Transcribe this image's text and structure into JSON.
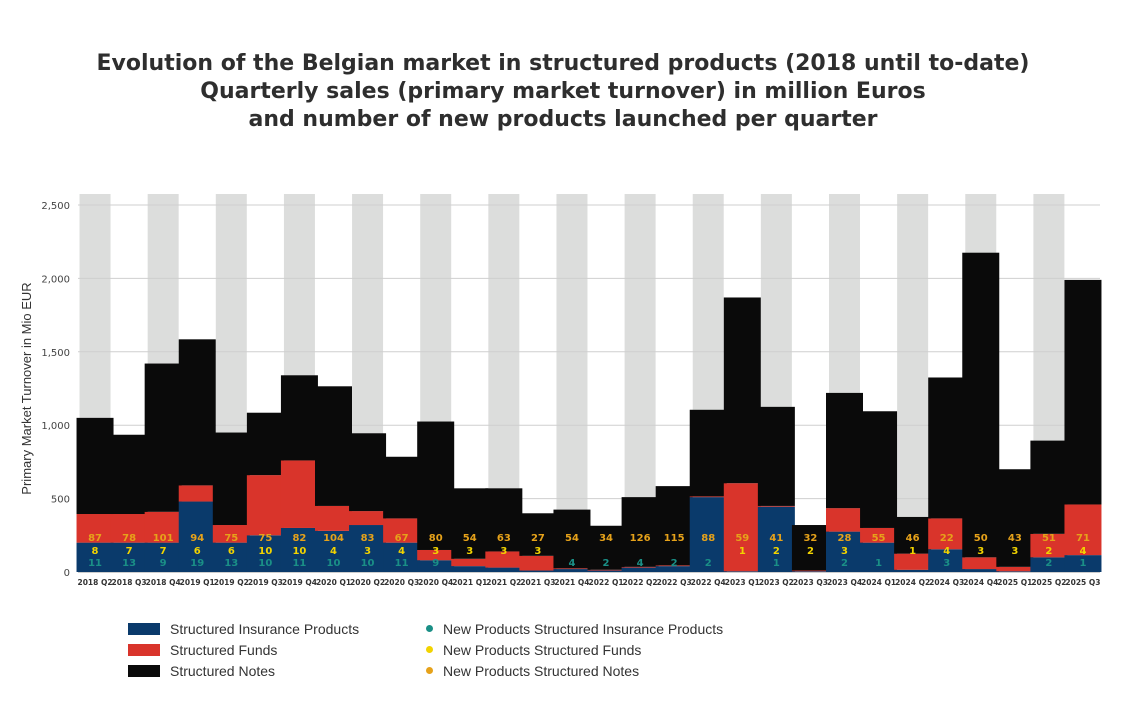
{
  "title_lines": [
    "Evolution of the Belgian market in structured products (2018 until to-date)",
    "Quarterly sales (primary market turnover) in million Euros",
    "and number of new products launched per quarter"
  ],
  "legend": {
    "insurance": "Structured Insurance Products",
    "funds": "Structured Funds",
    "notes": "Structured Notes",
    "new_insurance": "New Products Structured Insurance Products",
    "new_funds": "New Products Structured Funds",
    "new_notes": "New Products Structured Notes"
  },
  "colors": {
    "insurance": "#0a3a6b",
    "funds": "#d9342b",
    "notes": "#0a0a0a",
    "new_insurance": "#1a8f86",
    "new_funds": "#f2d300",
    "new_notes": "#e6a21a",
    "band": "#dcdddc"
  },
  "chart_data": {
    "type": "bar",
    "stacked": true,
    "ylabel": "Primary Market Turnover in Mio EUR",
    "ylim": [
      0,
      2500
    ],
    "yticks": [
      "0",
      "500",
      "1,000",
      "1,500",
      "2,000",
      "2,500"
    ],
    "grid": true,
    "legend_position": "bottom-left",
    "categories": [
      "2018 Q2",
      "2018 Q3",
      "2018 Q4",
      "2019 Q1",
      "2019 Q2",
      "2019 Q3",
      "2019 Q4",
      "2020 Q1",
      "2020 Q2",
      "2020 Q3",
      "2020 Q4",
      "2021 Q1",
      "2021 Q2",
      "2021 Q3",
      "2021 Q4",
      "2022 Q1",
      "2022 Q2",
      "2022 Q3",
      "2022 Q4",
      "2023 Q1",
      "2023 Q2",
      "2023 Q3",
      "2023 Q4",
      "2024 Q1",
      "2024 Q2",
      "2024 Q3",
      "2024 Q4",
      "2025 Q1",
      "2025 Q2",
      "2025 Q3"
    ],
    "series": [
      {
        "name": "Structured Insurance Products",
        "values": [
          200,
          200,
          200,
          480,
          200,
          250,
          300,
          280,
          320,
          200,
          80,
          40,
          30,
          10,
          20,
          10,
          30,
          40,
          510,
          5,
          445,
          5,
          275,
          200,
          15,
          155,
          20,
          5,
          100,
          115
        ]
      },
      {
        "name": "Structured Funds",
        "values": [
          195,
          195,
          210,
          110,
          120,
          410,
          460,
          170,
          95,
          165,
          70,
          50,
          110,
          100,
          5,
          5,
          5,
          5,
          5,
          600,
          5,
          5,
          160,
          100,
          110,
          210,
          80,
          30,
          160,
          345
        ]
      },
      {
        "name": "Structured Notes",
        "values": [
          655,
          540,
          1010,
          995,
          630,
          425,
          580,
          815,
          530,
          420,
          875,
          480,
          430,
          290,
          400,
          300,
          475,
          540,
          590,
          1265,
          675,
          310,
          785,
          795,
          250,
          960,
          2075,
          665,
          635,
          1530
        ]
      },
      {
        "name": "New Products Structured Insurance Products",
        "values": [
          11,
          13,
          9,
          19,
          13,
          10,
          11,
          10,
          10,
          11,
          9,
          null,
          null,
          null,
          4,
          2,
          4,
          2,
          2,
          null,
          1,
          null,
          2,
          1,
          null,
          3,
          null,
          null,
          2,
          1
        ]
      },
      {
        "name": "New Products Structured Funds",
        "values": [
          8,
          7,
          7,
          6,
          6,
          10,
          10,
          4,
          3,
          4,
          3,
          3,
          3,
          3,
          null,
          null,
          null,
          null,
          null,
          1,
          2,
          2,
          3,
          null,
          1,
          4,
          3,
          3,
          2,
          4
        ]
      },
      {
        "name": "New Products Structured Notes",
        "values": [
          87,
          78,
          101,
          94,
          75,
          75,
          82,
          104,
          83,
          67,
          80,
          54,
          63,
          27,
          54,
          34,
          126,
          115,
          88,
          59,
          41,
          32,
          28,
          55,
          46,
          22,
          50,
          43,
          51,
          71
        ]
      }
    ]
  }
}
